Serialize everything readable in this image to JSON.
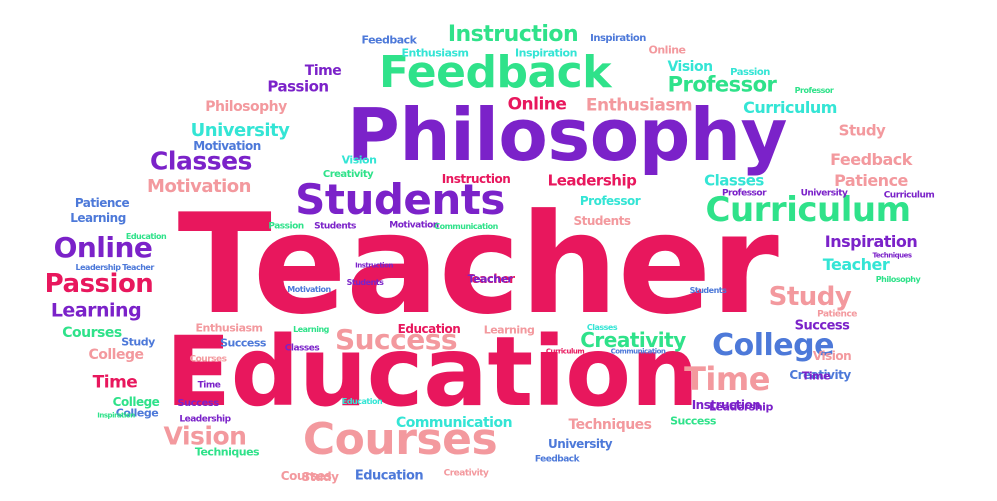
{
  "colors": {
    "red": "#e8175d",
    "purple": "#7b22c9",
    "green": "#2fe28a",
    "pink": "#f3999e",
    "cyan": "#34e5d5",
    "blue": "#4d79d9"
  },
  "words": [
    {
      "text": "Teacher",
      "color": "red"
    },
    {
      "text": "Education",
      "color": "red"
    },
    {
      "text": "Philosophy",
      "color": "purple"
    },
    {
      "text": "Feedback",
      "color": "green"
    },
    {
      "text": "Students",
      "color": "purple"
    },
    {
      "text": "Curriculum",
      "color": "green"
    },
    {
      "text": "Courses",
      "color": "pink"
    },
    {
      "text": "Success",
      "color": "pink"
    },
    {
      "text": "College",
      "color": "blue"
    },
    {
      "text": "Time",
      "color": "pink"
    },
    {
      "text": "Study",
      "color": "pink"
    },
    {
      "text": "Online",
      "color": "purple"
    },
    {
      "text": "Passion",
      "color": "red"
    },
    {
      "text": "Classes",
      "color": "purple"
    },
    {
      "text": "Vision",
      "color": "pink"
    },
    {
      "text": "Instruction",
      "color": "green"
    },
    {
      "text": "Professor",
      "color": "green"
    },
    {
      "text": "Creativity",
      "color": "green"
    },
    {
      "text": "Learning",
      "color": "purple"
    },
    {
      "text": "University",
      "color": "cyan"
    },
    {
      "text": "Motivation",
      "color": "pink"
    },
    {
      "text": "Online",
      "color": "red"
    },
    {
      "text": "Enthusiasm",
      "color": "pink"
    },
    {
      "text": "Curriculum",
      "color": "cyan"
    },
    {
      "text": "Feedback",
      "color": "pink"
    },
    {
      "text": "Patience",
      "color": "pink"
    },
    {
      "text": "Inspiration",
      "color": "purple"
    },
    {
      "text": "Teacher",
      "color": "cyan"
    },
    {
      "text": "Leadership",
      "color": "red"
    },
    {
      "text": "Classes",
      "color": "cyan"
    },
    {
      "text": "Study",
      "color": "pink"
    },
    {
      "text": "Passion",
      "color": "purple"
    },
    {
      "text": "Time",
      "color": "purple"
    },
    {
      "text": "Vision",
      "color": "cyan"
    },
    {
      "text": "Philosophy",
      "color": "pink"
    },
    {
      "text": "Courses",
      "color": "green"
    },
    {
      "text": "College",
      "color": "pink"
    },
    {
      "text": "Time",
      "color": "red"
    },
    {
      "text": "Communication",
      "color": "cyan"
    },
    {
      "text": "Techniques",
      "color": "pink"
    },
    {
      "text": "Success",
      "color": "purple"
    },
    {
      "text": "Education",
      "color": "blue"
    },
    {
      "text": "Professor",
      "color": "cyan"
    },
    {
      "text": "Students",
      "color": "pink"
    },
    {
      "text": "Instruction",
      "color": "red"
    },
    {
      "text": "Motivation",
      "color": "blue"
    },
    {
      "text": "Creativity",
      "color": "green"
    },
    {
      "text": "Learning",
      "color": "blue"
    },
    {
      "text": "Patience",
      "color": "blue"
    },
    {
      "text": "Teacher",
      "color": "red"
    },
    {
      "text": "Education",
      "color": "red"
    },
    {
      "text": "Learning",
      "color": "pink"
    },
    {
      "text": "Enthusiasm",
      "color": "cyan"
    },
    {
      "text": "Inspiration",
      "color": "cyan"
    },
    {
      "text": "Feedback",
      "color": "blue"
    },
    {
      "text": "Inspiration",
      "color": "blue"
    },
    {
      "text": "Online",
      "color": "pink"
    },
    {
      "text": "Vision",
      "color": "cyan"
    },
    {
      "text": "Passion",
      "color": "cyan"
    },
    {
      "text": "Professor",
      "color": "green"
    },
    {
      "text": "Vision",
      "color": "pink"
    },
    {
      "text": "Creativity",
      "color": "blue"
    },
    {
      "text": "Instruction",
      "color": "purple"
    },
    {
      "text": "Passion",
      "color": "green"
    },
    {
      "text": "Students",
      "color": "purple"
    },
    {
      "text": "Motivation",
      "color": "purple"
    },
    {
      "text": "Communication",
      "color": "green"
    },
    {
      "text": "Education",
      "color": "green"
    },
    {
      "text": "Leadership",
      "color": "blue"
    },
    {
      "text": "Teacher",
      "color": "blue"
    },
    {
      "text": "Instruction",
      "color": "purple"
    },
    {
      "text": "Motivation",
      "color": "blue"
    },
    {
      "text": "Students",
      "color": "blue"
    },
    {
      "text": "Enthusiasm",
      "color": "pink"
    },
    {
      "text": "Learning",
      "color": "green"
    },
    {
      "text": "Classes",
      "color": "cyan"
    },
    {
      "text": "Curriculum",
      "color": "red"
    },
    {
      "text": "Communication",
      "color": "blue"
    },
    {
      "text": "Classes",
      "color": "purple"
    },
    {
      "text": "Time",
      "color": "purple"
    },
    {
      "text": "Courses",
      "color": "pink"
    },
    {
      "text": "Success",
      "color": "blue"
    },
    {
      "text": "Study",
      "color": "blue"
    },
    {
      "text": "College",
      "color": "green"
    },
    {
      "text": "Patience",
      "color": "pink"
    },
    {
      "text": "Leadership",
      "color": "purple"
    },
    {
      "text": "Success",
      "color": "green"
    },
    {
      "text": "University",
      "color": "blue"
    },
    {
      "text": "Feedback",
      "color": "blue"
    },
    {
      "text": "Creativity",
      "color": "pink"
    },
    {
      "text": "Study",
      "color": "pink"
    },
    {
      "text": "Techniques",
      "color": "green"
    },
    {
      "text": "Courses",
      "color": "pink"
    },
    {
      "text": "College",
      "color": "blue"
    },
    {
      "text": "Success",
      "color": "purple"
    },
    {
      "text": "Inspiration",
      "color": "green"
    },
    {
      "text": "Professor",
      "color": "purple"
    },
    {
      "text": "University",
      "color": "purple"
    },
    {
      "text": "Curriculum",
      "color": "purple"
    },
    {
      "text": "Philosophy",
      "color": "green"
    },
    {
      "text": "Techniques",
      "color": "purple"
    },
    {
      "text": "Leadership",
      "color": "purple"
    },
    {
      "text": "Education",
      "color": "cyan"
    },
    {
      "text": "Teacher",
      "color": "purple"
    },
    {
      "text": "Students",
      "color": "purple"
    },
    {
      "text": "Time",
      "color": "purple"
    }
  ]
}
